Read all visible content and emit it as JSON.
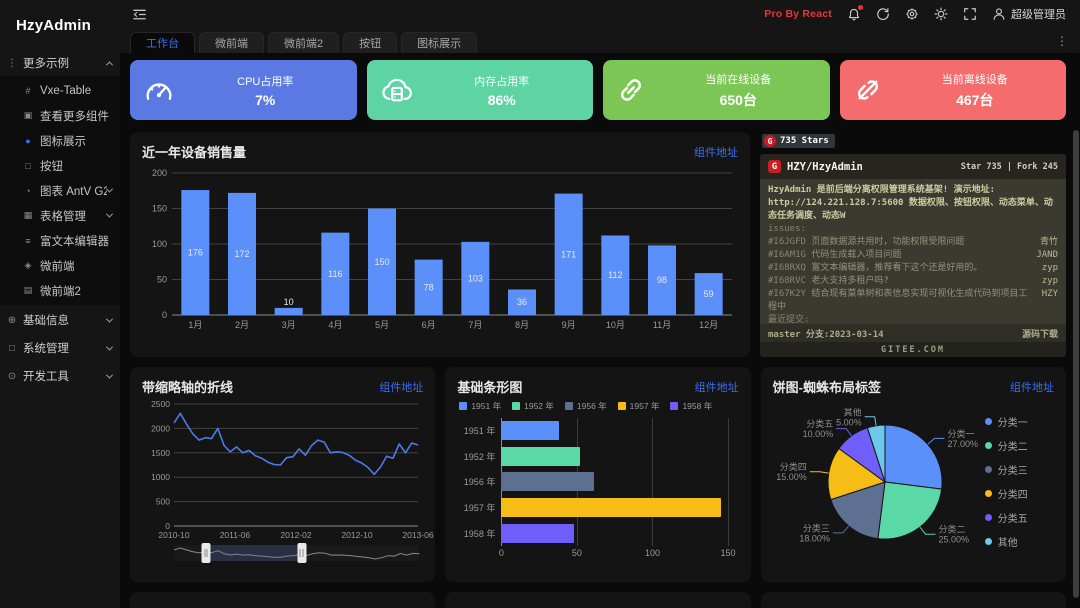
{
  "app": {
    "logo": "HzyAdmin",
    "pro_label": "Pro By React",
    "username": "超级管理员"
  },
  "colors": {
    "accent": "#3d6ef0",
    "danger": "#e5353e"
  },
  "tabbar": {
    "active_index": 0,
    "tabs": [
      "工作台",
      "微前端",
      "微前端2",
      "按钮",
      "图标展示"
    ]
  },
  "sidebar": {
    "groups": [
      {
        "label": "更多示例",
        "icon": "list-icon",
        "glyph": "⋮",
        "state": "expanded",
        "items": [
          {
            "label": "Vxe-Table",
            "icon": "hash-icon",
            "glyph": "#"
          },
          {
            "label": "查看更多组件",
            "icon": "components-icon",
            "glyph": "▣"
          },
          {
            "label": "图标展示",
            "icon": "dot-icon",
            "glyph": "●",
            "glyph_color": "#3d6ef0"
          },
          {
            "label": "按钮",
            "icon": "button-icon",
            "glyph": "□"
          },
          {
            "label": "图表 AntV G2",
            "icon": "chart-icon",
            "glyph": "◔",
            "chevron": "down"
          },
          {
            "label": "表格管理",
            "icon": "table-icon",
            "glyph": "▦",
            "chevron": "down"
          },
          {
            "label": "富文本编辑器",
            "icon": "editor-icon",
            "glyph": "≡"
          },
          {
            "label": "微前端",
            "icon": "micro-frontend-icon",
            "glyph": "◈"
          },
          {
            "label": "微前端2",
            "icon": "micro-frontend2-icon",
            "glyph": "▤"
          }
        ]
      },
      {
        "label": "基础信息",
        "icon": "info-icon",
        "glyph": "⊕",
        "state": "collapsed",
        "items": []
      },
      {
        "label": "系统管理",
        "icon": "system-icon",
        "glyph": "□",
        "state": "collapsed",
        "items": []
      },
      {
        "label": "开发工具",
        "icon": "devtools-icon",
        "glyph": "⊙",
        "state": "collapsed",
        "items": []
      }
    ]
  },
  "stat_cards": [
    {
      "label": "CPU占用率",
      "value": "7%",
      "color": "#5b79e3",
      "icon": "gauge-icon"
    },
    {
      "label": "内存占用率",
      "value": "86%",
      "color": "#5ed3a4",
      "icon": "cloud-server-icon"
    },
    {
      "label": "当前在线设备",
      "value": "650台",
      "color": "#7cc655",
      "icon": "link-icon"
    },
    {
      "label": "当前离线设备",
      "value": "467台",
      "color": "#f56c6c",
      "icon": "link-broken-icon"
    }
  ],
  "panels": {
    "component_link_label": "组件地址"
  },
  "gitee": {
    "logo_letter": "G",
    "stars_badge": "735 Stars",
    "repo": "HZY/HzyAdmin",
    "stats": "Star 735 | Fork 245",
    "description": "HzyAdmin 是前后端分离权限管理系统基架! 演示地址: http://124.221.128.7:5600 数据权限、按钮权限、动态菜单、动态任务调度、动态W",
    "issues_label": "issues:",
    "issues": [
      {
        "id": "#I6JGFD",
        "text": "页面数据源共用时，功能权限受限问题",
        "author": "青竹"
      },
      {
        "id": "#I6AM1G",
        "text": "代码生成载入项目问题",
        "author": "JAND"
      },
      {
        "id": "#I68RXQ",
        "text": "富文本编辑器，推荐看下这个还是好用的。",
        "author": "zyp"
      },
      {
        "id": "#I68RVC",
        "text": "老大支持多租户吗?",
        "author": "zyp"
      },
      {
        "id": "#I67K2Y",
        "text": "结合现有菜单树和表信息实现可视化生成代码到项目工程中",
        "author": "HZY"
      }
    ],
    "commits_label": "最近提交:",
    "commits": [
      {
        "hash": "7c18d393",
        "text": "Merge branch 'master' of ht...",
        "meta": "HZY 6天"
      },
      {
        "hash": "58eeb7c0",
        "text": "升级插件，仓储支持 插入或者更新时可以 忽略某个字段",
        "meta": "HZY 6天"
      },
      {
        "hash": "3eb52deb",
        "text": "update hzy-admin-client/src...",
        "meta": "HZY 23天"
      }
    ],
    "branch": "master 分支:2023-03-14",
    "download": "源码下载",
    "footer": "GITEE.COM"
  },
  "chart_data": [
    {
      "id": "monthly-sales",
      "type": "bar",
      "title": "近一年设备销售量",
      "categories": [
        "1月",
        "2月",
        "3月",
        "4月",
        "5月",
        "6月",
        "7月",
        "8月",
        "9月",
        "10月",
        "11月",
        "12月"
      ],
      "values": [
        176,
        172,
        10,
        116,
        150,
        78,
        103,
        36,
        171,
        112,
        98,
        59
      ],
      "ylim": [
        0,
        200
      ],
      "yticks": [
        0,
        50,
        100,
        150,
        200
      ],
      "color": "#5B8FF9",
      "grid": true,
      "value_labels": true,
      "xlabel": "",
      "ylabel": ""
    },
    {
      "id": "line-with-slider",
      "type": "line",
      "title": "带缩略轴的折线",
      "x_ticks": [
        "2010-10",
        "2011-06",
        "2012-02",
        "2012-10",
        "2013-06"
      ],
      "values": [
        2110,
        2310,
        2090,
        1890,
        1760,
        1810,
        1790,
        2000,
        1650,
        1520,
        1620,
        1500,
        1550,
        1440,
        1390,
        1310,
        1260,
        1250,
        1400,
        1420,
        1580,
        1450,
        1650,
        1760,
        1720,
        1500,
        1520,
        1505,
        1450,
        1350,
        1290,
        1200,
        1060,
        1210,
        1430,
        1390,
        1680,
        1500,
        1700,
        1660
      ],
      "ylim": [
        0,
        2500
      ],
      "yticks": [
        0,
        500,
        1000,
        1500,
        2000,
        2500
      ],
      "color": "#4d7be8",
      "grid": true,
      "slider": {
        "from": 0.13,
        "to": 0.52
      }
    },
    {
      "id": "basic-hbar",
      "type": "bar",
      "orientation": "horizontal",
      "title": "基础条形图",
      "categories": [
        "1951 年",
        "1952 年",
        "1956 年",
        "1957 年",
        "1958 年"
      ],
      "values": [
        38,
        52,
        61,
        145,
        48
      ],
      "colors": [
        "#5B8FF9",
        "#5AD8A6",
        "#5D7092",
        "#F6BD16",
        "#6F5EF9"
      ],
      "xlim": [
        0,
        157
      ],
      "xticks": [
        0,
        50,
        100,
        150
      ],
      "legend": [
        "1951 年",
        "1952 年",
        "1956 年",
        "1957 年",
        "1958 年"
      ],
      "legend_position": "top"
    },
    {
      "id": "pie-spider",
      "type": "pie",
      "title": "饼图-蜘蛛布局标签",
      "labels": [
        "分类一",
        "分类二",
        "分类三",
        "分类四",
        "分类五",
        "其他"
      ],
      "values": [
        27,
        25,
        18,
        15,
        10,
        5
      ],
      "value_format": "percent",
      "colors": [
        "#5B8FF9",
        "#5AD8A6",
        "#5D7092",
        "#F6BD16",
        "#6F5EF9",
        "#6DC8EC"
      ],
      "legend_position": "right"
    }
  ]
}
